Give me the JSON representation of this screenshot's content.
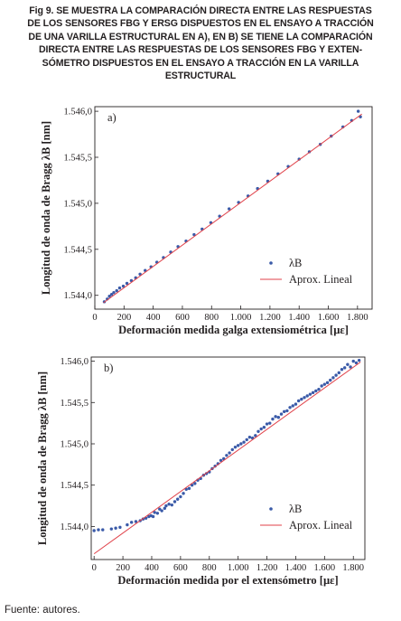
{
  "figure": {
    "caption": "Fig 9. SE MUESTRA LA COMPARACIÓN DIRECTA ENTRE LAS RESPUESTAS\nDE LOS SENSORES FBG Y ERSG DISPUESTOS EN EL ENSAYO A TRACCIÓN\nDE UNA VARILLA ESTRUCTURAL EN A), EN B) SE TIENE LA COMPARACIÓN\nDIRECTA ENTRE LAS RESPUESTAS DE LOS SENSORES FBG Y EXTEN-\nSÓMETRO DISPUESTOS EN EL ENSAYO A TRACCIÓN EN LA VARILLA\nESTRUCTURAL",
    "source": "Fuente: autores."
  },
  "colors": {
    "points": "#3a5aa8",
    "fit_line": "#e0424a",
    "axis": "#231f20"
  },
  "chart_data": [
    {
      "type": "scatter",
      "panel_label": "a)",
      "xlabel": "Deformación medida galga extensiométrica  [µε]",
      "ylabel": "Longitud de onda de Bragg λB [nm]",
      "xlim": [
        0,
        1900
      ],
      "ylim": [
        1543.85,
        1546.05
      ],
      "xticks": [
        0,
        200,
        400,
        600,
        800,
        1000,
        1200,
        1400,
        1600,
        1800
      ],
      "xtick_labels": [
        "0",
        "200",
        "400",
        "600",
        "800",
        "1.000",
        "1.200",
        "1.400",
        "1.600",
        "1.800"
      ],
      "yticks": [
        1544.0,
        1544.5,
        1545.0,
        1545.5,
        1546.0
      ],
      "ytick_labels": [
        "1.544,0",
        "1.544,5",
        "1.545,0",
        "1.545,5",
        "1.546,0"
      ],
      "legend": {
        "position": "bottom-right",
        "entries": [
          "λB",
          "Aprox. Lineal"
        ]
      },
      "series": [
        {
          "name": "λB",
          "style": "points",
          "x": [
            65,
            85,
            100,
            115,
            130,
            150,
            170,
            195,
            220,
            250,
            280,
            310,
            345,
            385,
            425,
            470,
            520,
            570,
            625,
            680,
            735,
            795,
            855,
            920,
            985,
            1050,
            1115,
            1185,
            1255,
            1325,
            1400,
            1470,
            1545,
            1620,
            1700,
            1760,
            1805,
            1820
          ],
          "y": [
            1543.93,
            1543.96,
            1543.99,
            1544.01,
            1544.03,
            1544.05,
            1544.08,
            1544.1,
            1544.13,
            1544.16,
            1544.19,
            1544.23,
            1544.27,
            1544.31,
            1544.36,
            1544.41,
            1544.47,
            1544.53,
            1544.59,
            1544.66,
            1544.72,
            1544.79,
            1544.86,
            1544.94,
            1545.01,
            1545.08,
            1545.16,
            1545.24,
            1545.32,
            1545.4,
            1545.48,
            1545.56,
            1545.64,
            1545.73,
            1545.83,
            1545.9,
            1546.0,
            1545.94
          ]
        },
        {
          "name": "Aprox. Lineal",
          "style": "line",
          "x": [
            60,
            1830
          ],
          "y": [
            1543.92,
            1545.97
          ]
        }
      ]
    },
    {
      "type": "scatter",
      "panel_label": "b)",
      "xlabel": "Deformación medida por el extensómetro [µε]",
      "ylabel": "Longitud de onda de Bragg λB [nm]",
      "xlim": [
        -20,
        1880
      ],
      "ylim": [
        1543.6,
        1546.05
      ],
      "xticks": [
        0,
        200,
        400,
        600,
        800,
        1000,
        1200,
        1400,
        1600,
        1800
      ],
      "xtick_labels": [
        "0",
        "200",
        "400",
        "600",
        "800",
        "1.000",
        "1.200",
        "1.400",
        "1.600",
        "1.800"
      ],
      "yticks": [
        1544.0,
        1544.5,
        1545.0,
        1545.5,
        1546.0
      ],
      "ytick_labels": [
        "1.544,0",
        "1.544,5",
        "1.545,0",
        "1.545,5",
        "1.546,0"
      ],
      "legend": {
        "position": "bottom-right",
        "entries": [
          "λB",
          "Aprox. Lineal"
        ]
      },
      "series": [
        {
          "name": "λB",
          "style": "points",
          "x": [
            0,
            30,
            60,
            120,
            150,
            180,
            230,
            260,
            290,
            320,
            340,
            360,
            380,
            395,
            410,
            420,
            440,
            455,
            470,
            490,
            500,
            520,
            540,
            560,
            580,
            600,
            620,
            640,
            660,
            680,
            700,
            720,
            740,
            760,
            780,
            800,
            820,
            840,
            860,
            880,
            900,
            920,
            940,
            960,
            980,
            1000,
            1020,
            1040,
            1060,
            1080,
            1100,
            1120,
            1140,
            1160,
            1180,
            1200,
            1220,
            1240,
            1260,
            1280,
            1300,
            1320,
            1340,
            1360,
            1380,
            1400,
            1420,
            1440,
            1460,
            1480,
            1500,
            1520,
            1540,
            1560,
            1580,
            1600,
            1620,
            1640,
            1660,
            1680,
            1700,
            1720,
            1740,
            1760,
            1780,
            1800,
            1820,
            1840
          ],
          "y": [
            1543.95,
            1543.96,
            1543.96,
            1543.97,
            1543.98,
            1543.99,
            1544.02,
            1544.05,
            1544.06,
            1544.07,
            1544.09,
            1544.1,
            1544.12,
            1544.13,
            1544.12,
            1544.17,
            1544.16,
            1544.21,
            1544.19,
            1544.22,
            1544.25,
            1544.27,
            1544.26,
            1544.3,
            1544.33,
            1544.36,
            1544.4,
            1544.45,
            1544.46,
            1544.5,
            1544.52,
            1544.56,
            1544.58,
            1544.62,
            1544.64,
            1544.66,
            1544.7,
            1544.73,
            1544.76,
            1544.8,
            1544.82,
            1544.86,
            1544.89,
            1544.93,
            1544.96,
            1544.98,
            1545.0,
            1545.02,
            1545.05,
            1545.08,
            1545.07,
            1545.1,
            1545.15,
            1545.18,
            1545.2,
            1545.24,
            1545.25,
            1545.3,
            1545.33,
            1545.32,
            1545.36,
            1545.39,
            1545.4,
            1545.44,
            1545.46,
            1545.48,
            1545.52,
            1545.54,
            1545.56,
            1545.58,
            1545.6,
            1545.62,
            1545.64,
            1545.66,
            1545.7,
            1545.72,
            1545.74,
            1545.77,
            1545.8,
            1545.83,
            1545.86,
            1545.9,
            1545.92,
            1545.96,
            1545.93,
            1546.0,
            1545.98,
            1546.01
          ]
        },
        {
          "name": "Aprox. Lineal",
          "style": "line",
          "x": [
            0,
            1850
          ],
          "y": [
            1543.67,
            1545.99
          ]
        }
      ]
    }
  ]
}
